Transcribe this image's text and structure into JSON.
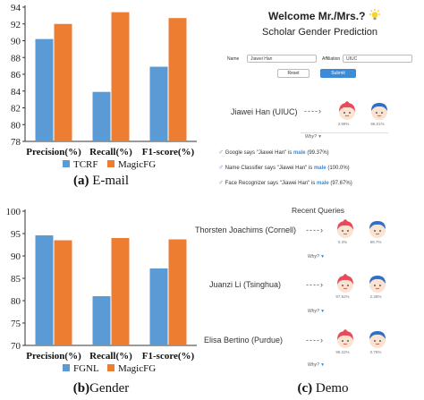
{
  "chart_data": [
    {
      "type": "bar",
      "categories": [
        "Precision(%)",
        "Recall(%)",
        "F1-score(%)"
      ],
      "series": [
        {
          "name": "TCRF",
          "values": [
            90.2,
            83.9,
            86.9
          ],
          "color": "#5b9bd5"
        },
        {
          "name": "MagicFG",
          "values": [
            92.0,
            93.4,
            92.7
          ],
          "color": "#ed7d31"
        }
      ],
      "ylim": [
        78,
        94
      ],
      "yticks": [
        78,
        80,
        82,
        84,
        86,
        88,
        90,
        92,
        94
      ],
      "ytick_labels": [
        "78",
        "80",
        "82",
        "84",
        "86",
        "88",
        "90",
        "92",
        "94"
      ],
      "legend": "bottom",
      "grid": false
    },
    {
      "type": "bar",
      "categories": [
        "Precision(%)",
        "Recall(%)",
        "F1-score(%)"
      ],
      "series": [
        {
          "name": "FGNL",
          "values": [
            94.6,
            81.0,
            87.2
          ],
          "color": "#5b9bd5"
        },
        {
          "name": "MagicFG",
          "values": [
            93.5,
            94.0,
            93.7
          ],
          "color": "#ed7d31"
        }
      ],
      "ylim": [
        70,
        100
      ],
      "yticks": [
        70,
        75,
        80,
        85,
        90,
        95,
        100
      ],
      "ytick_labels": [
        "70",
        "75",
        "80",
        "85",
        "90",
        "95",
        "100"
      ],
      "legend": "bottom",
      "grid": false
    }
  ],
  "captions": {
    "a_label": "(a)",
    "a_text": "E-mail",
    "b_label": "(b)",
    "b_text": "Gender",
    "c_label": "(c)",
    "c_text": "Demo"
  },
  "demo": {
    "welcome": "Welcome Mr./Mrs.?",
    "bulb_icon": "lightbulb-icon",
    "subtitle": "Scholar Gender Prediction",
    "name_label": "Name",
    "name_value": "Jiawei Han",
    "affiliation_label": "Affiliation",
    "affiliation_value": "UIUC",
    "reset_label": "Reset",
    "submit_label": "Submit",
    "main_query": {
      "person": "Jiawei Han (UIUC)",
      "female_pct": "3.99%",
      "male_pct": "96.01%"
    },
    "why_label": "Why?",
    "reasons": [
      {
        "prefix": "Google says \"Jiawei Han\" is",
        "verdict": "male",
        "suffix": "(99.37%)"
      },
      {
        "prefix": "Name Classifier says \"Jiawei Han\" is",
        "verdict": "male",
        "suffix": "(100.0%)"
      },
      {
        "prefix": "Face Recognizer says \"Jiawei Han\" is",
        "verdict": "male",
        "suffix": "(97.67%)"
      }
    ],
    "recent_title": "Recent Queries",
    "recent": [
      {
        "person": "Thorsten Joachims (Cornell)",
        "female_pct": "0.3%",
        "male_pct": "99.7%"
      },
      {
        "person": "Juanzi Li (Tsinghua)",
        "female_pct": "97.62%",
        "male_pct": "2.38%"
      },
      {
        "person": "Elisa Bertino (Purdue)",
        "female_pct": "99.22%",
        "male_pct": "0.78%"
      }
    ],
    "colors": {
      "female": "#e84a5a",
      "male": "#2f6fc6",
      "accent": "#3b8bd6"
    }
  }
}
